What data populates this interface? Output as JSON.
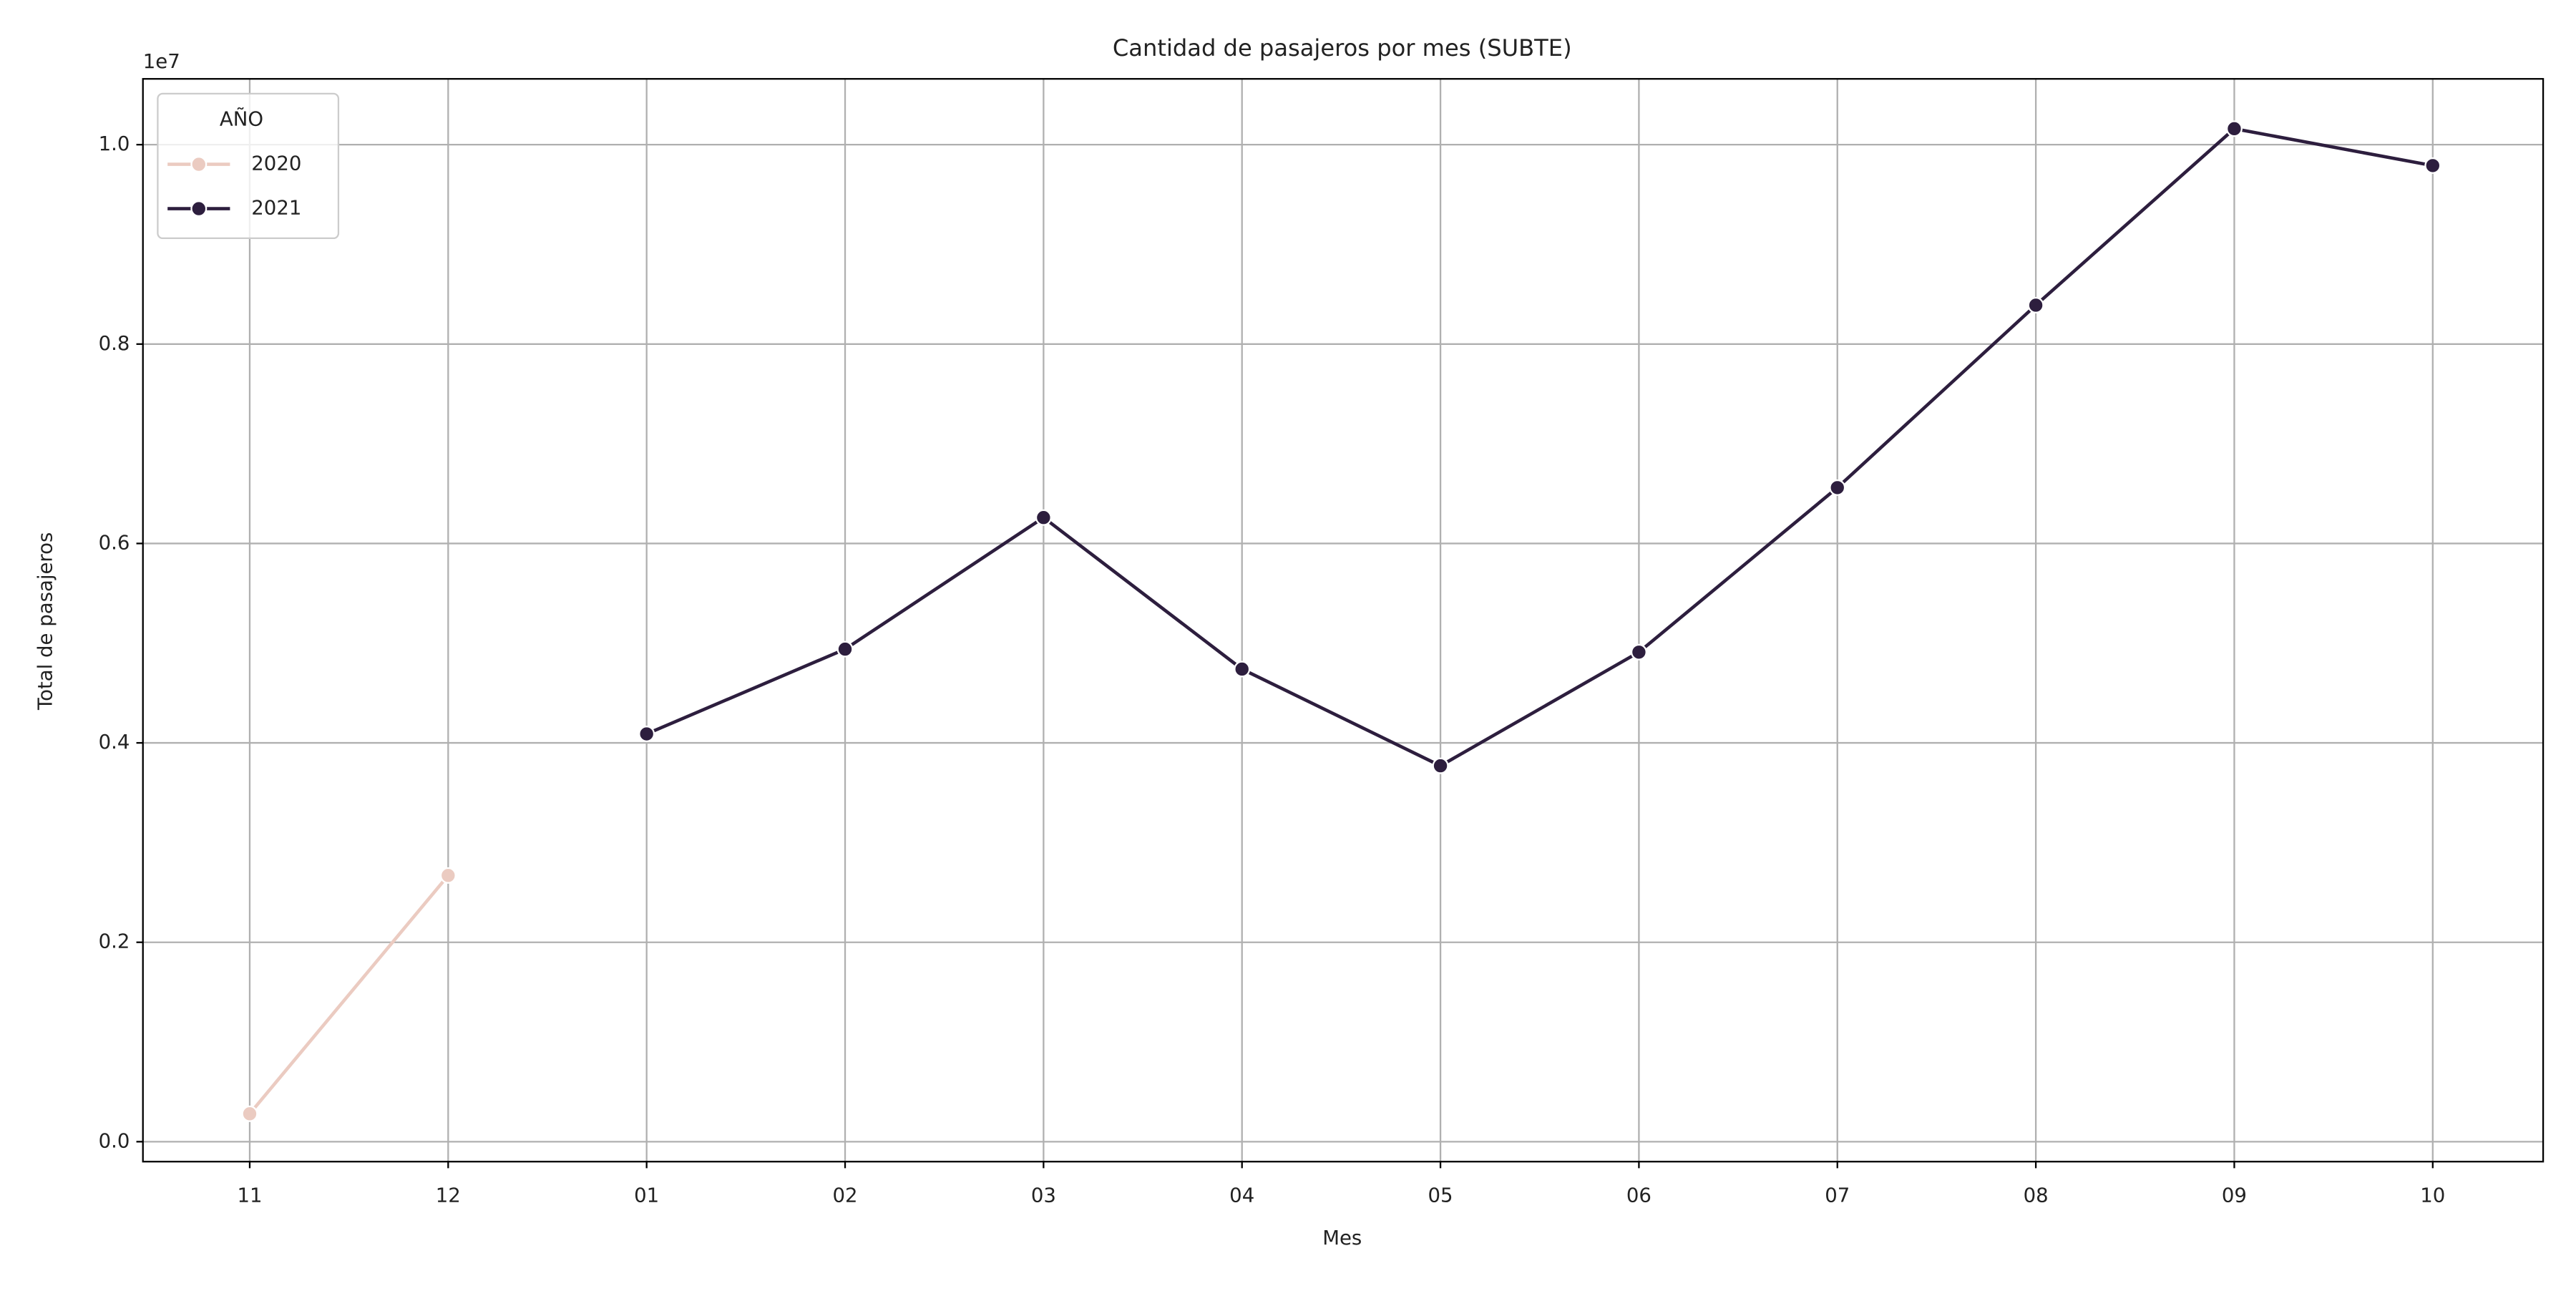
{
  "chart_data": {
    "type": "line",
    "title": "Cantidad de pasajeros por mes (SUBTE)",
    "xlabel": "Mes",
    "ylabel": "Total de pasajeros",
    "y_offset_label": "1e7",
    "categories": [
      "11",
      "12",
      "01",
      "02",
      "03",
      "04",
      "05",
      "06",
      "07",
      "08",
      "09",
      "10"
    ],
    "series": [
      {
        "name": "2020",
        "color": "#ebcbc1",
        "values": [
          0.028,
          0.267,
          null,
          null,
          null,
          null,
          null,
          null,
          null,
          null,
          null,
          null
        ]
      },
      {
        "name": "2021",
        "color": "#2d1e3e",
        "values": [
          null,
          null,
          0.409,
          0.494,
          0.626,
          0.474,
          0.377,
          0.491,
          0.656,
          0.839,
          1.016,
          0.979
        ]
      }
    ],
    "ylim": [
      -0.02,
      1.066
    ],
    "yticks": [
      {
        "value": 0,
        "label": "0.0"
      },
      0.2,
      0.4,
      0.6,
      0.8,
      {
        "value": 1,
        "label": "1.0"
      }
    ],
    "grid": true,
    "legend": {
      "title": "AÑO",
      "position": "upper-left"
    }
  }
}
